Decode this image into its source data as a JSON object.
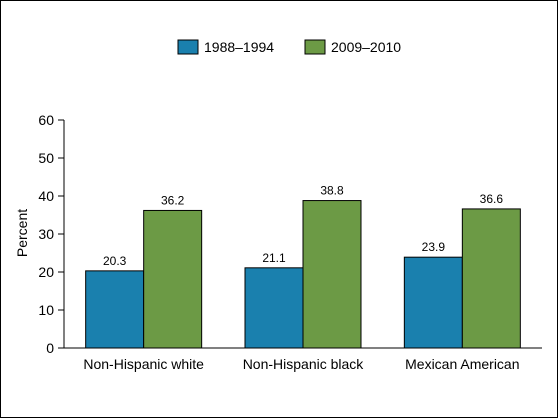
{
  "chart_data": {
    "type": "bar",
    "categories": [
      "Non-Hispanic white",
      "Non-Hispanic black",
      "Mexican American"
    ],
    "series": [
      {
        "name": "1988–1994",
        "values": [
          20.3,
          21.1,
          23.9
        ],
        "color": "#1a80ae"
      },
      {
        "name": "2009–2010",
        "values": [
          36.2,
          38.8,
          36.6
        ],
        "color": "#6c9a45"
      }
    ],
    "ylabel": "Percent",
    "xlabel": "",
    "ylim": [
      0,
      60
    ],
    "yticks": [
      0,
      10,
      20,
      30,
      40,
      50,
      60
    ],
    "grid": false,
    "legend_position": "top-center",
    "data_labels": true
  }
}
